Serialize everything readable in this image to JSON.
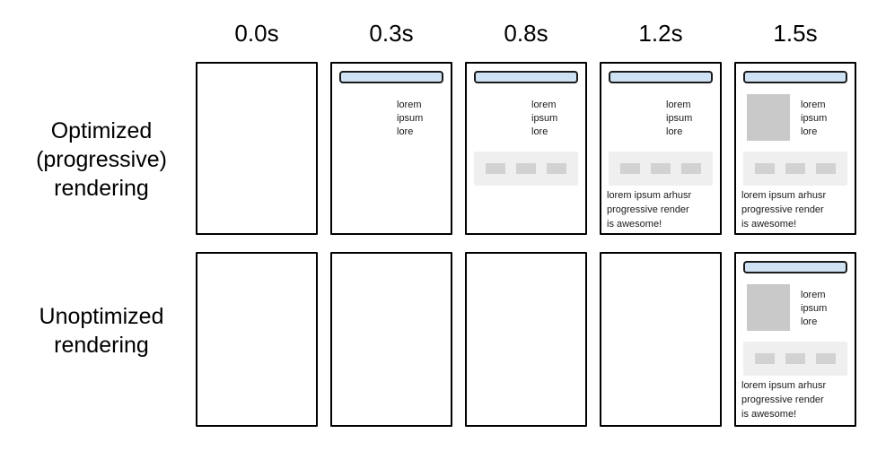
{
  "columns": [
    "0.0s",
    "0.3s",
    "0.8s",
    "1.2s",
    "1.5s"
  ],
  "rows": [
    {
      "label_lines": [
        "Optimized",
        "(progressive)",
        "rendering"
      ],
      "cells": [
        {},
        {
          "bar": true,
          "text": true
        },
        {
          "bar": true,
          "text": true,
          "band": true
        },
        {
          "bar": true,
          "text": true,
          "band": true,
          "para": true
        },
        {
          "bar": true,
          "text": true,
          "band": true,
          "para": true,
          "image": true
        }
      ]
    },
    {
      "label_lines": [
        "Unoptimized",
        "rendering"
      ],
      "cells": [
        {},
        {},
        {},
        {},
        {
          "bar": true,
          "text": true,
          "band": true,
          "para": true,
          "image": true
        }
      ]
    }
  ],
  "page_mock": {
    "nav_lines": [
      "lorem",
      "ipsum",
      "lore"
    ],
    "para_lines": [
      "lorem ipsum arhusr",
      "progressive render",
      "is awesome!"
    ]
  },
  "colors": {
    "header_bar_fill": "#cfe2f3",
    "header_bar_border": "#1a1a1a",
    "page_border": "#000000",
    "image_placeholder": "#c9c9c9",
    "band_background": "#efefef",
    "band_item": "#d2d2d2",
    "text": "#1a1a1a",
    "background": "#ffffff"
  }
}
